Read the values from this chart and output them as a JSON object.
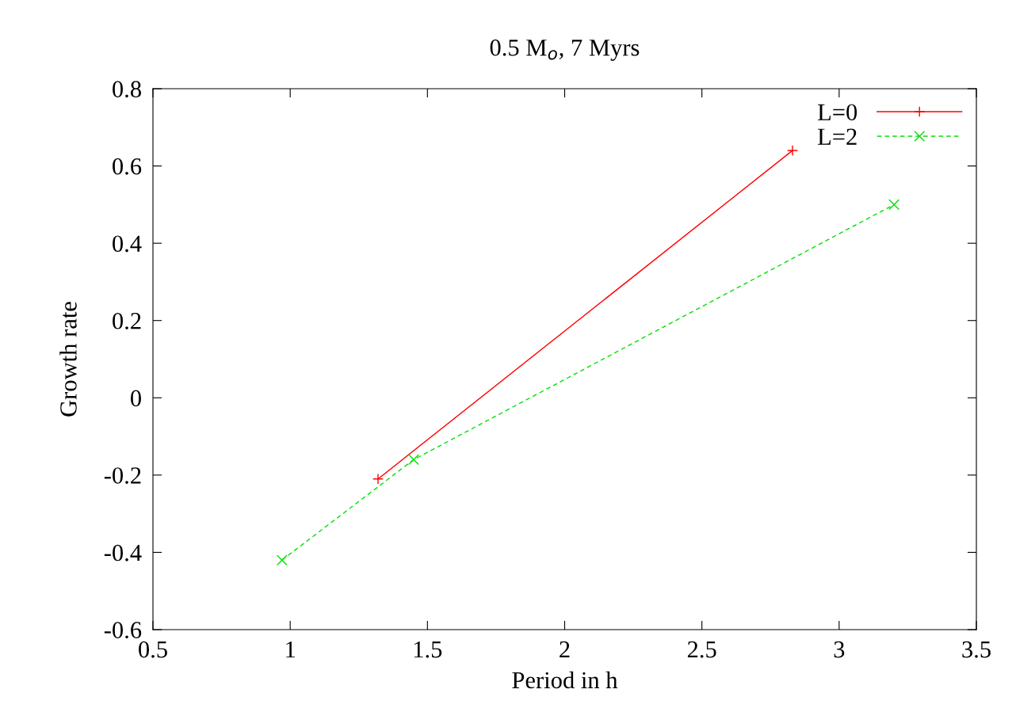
{
  "chart_data": {
    "type": "line",
    "title": "0.5 M$_{o}$, 7 Myrs",
    "xlabel": "Period in h",
    "ylabel": "Growth rate",
    "xlim": [
      0.5,
      3.5
    ],
    "xticks": [
      0.5,
      1,
      1.5,
      2,
      2.5,
      3,
      3.5
    ],
    "ylim": [
      -0.6,
      0.8
    ],
    "yticks": [
      -0.6,
      -0.4,
      -0.2,
      0,
      0.2,
      0.4,
      0.6,
      0.8
    ],
    "grid": false,
    "legend": "top right",
    "series": [
      {
        "name": "L=0",
        "color": "#ff0000",
        "x": [
          1.32,
          2.83
        ],
        "values": [
          -0.21,
          0.64
        ],
        "marker": "plus",
        "line_style": "solid"
      },
      {
        "name": "L=2",
        "color": "#00e000",
        "x": [
          0.97,
          1.45,
          3.2
        ],
        "values": [
          -0.42,
          -0.16,
          0.5
        ],
        "marker": "cross",
        "line_style": "dashed"
      }
    ]
  }
}
